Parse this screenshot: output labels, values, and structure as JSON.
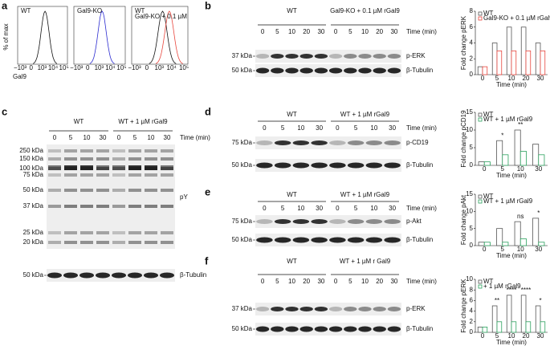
{
  "panel_a": {
    "label": "a",
    "ylabel": "% of max",
    "xlabel": "Gal9",
    "xticks": [
      "−10³",
      "0",
      "10³",
      "10⁴",
      "10⁵"
    ],
    "plots": [
      {
        "legend": [
          "WT"
        ],
        "colors": [
          "#111111"
        ]
      },
      {
        "legend": [
          "Gal9-KO"
        ],
        "colors": [
          "#2b2bd0"
        ]
      },
      {
        "legend": [
          "WT",
          "Gal9-KO + 0.1 µM"
        ],
        "colors": [
          "#111111",
          "#e8453c"
        ]
      }
    ]
  },
  "blots": [
    {
      "label": "b",
      "groups": [
        "WT",
        "Gal9-KO + 0.1 µM rGal9"
      ],
      "times": [
        0,
        5,
        10,
        20,
        30,
        0,
        5,
        10,
        20,
        30
      ],
      "time_label": "Time (min)",
      "rows": [
        {
          "marker": "37 kDa",
          "name": "p-ERK"
        },
        {
          "marker": "50 kDa",
          "name": "β-Tubulin"
        }
      ]
    },
    {
      "label": "c",
      "groups": [
        "WT",
        "WT + 1 µM rGal9"
      ],
      "times": [
        0,
        5,
        10,
        30,
        0,
        5,
        10,
        30
      ],
      "time_label": "Time (min)",
      "markers": [
        "250 kDa",
        "150 kDa",
        "100 kDa",
        "75 kDa",
        "50 kDa",
        "37 kDa",
        "25 kDa",
        "20 kDa"
      ],
      "rows": [
        {
          "name": "pY"
        },
        {
          "marker": "50 kDa",
          "name": "β-Tubulin"
        }
      ]
    },
    {
      "label": "d",
      "groups": [
        "WT",
        "WT + 1 µM rGal9"
      ],
      "times": [
        0,
        5,
        10,
        30,
        0,
        5,
        10,
        30
      ],
      "time_label": "Time (min)",
      "rows": [
        {
          "marker": "75 kDa",
          "name": "p-CD19"
        },
        {
          "marker": "50 kDa",
          "name": "β-Tubulin"
        }
      ]
    },
    {
      "label": "e",
      "groups": [
        "WT",
        "WT + 1 µM rGal9"
      ],
      "times": [
        0,
        5,
        10,
        30,
        0,
        5,
        10,
        30
      ],
      "time_label": "Time (min)",
      "rows": [
        {
          "marker": "75 kDa",
          "name": "p-Akt"
        },
        {
          "marker": "50 kDa",
          "name": "β-Tubulin"
        }
      ]
    },
    {
      "label": "f",
      "groups": [
        "WT",
        "WT + 1 µM r Gal9"
      ],
      "times": [
        0,
        5,
        10,
        20,
        30,
        0,
        5,
        10,
        20,
        30
      ],
      "time_label": "Time (min)",
      "rows": [
        {
          "marker": "37 kDa",
          "name": "p-ERK"
        },
        {
          "marker": "50 kDa",
          "name": "β-Tubulin"
        }
      ]
    }
  ],
  "chart_data": [
    {
      "type": "bar",
      "ylabel": "Fold change pERK",
      "xlabel": "Time (min)",
      "categories": [
        0,
        5,
        10,
        20,
        30
      ],
      "series": [
        {
          "name": "WT",
          "color": "#555555",
          "values": [
            1,
            4,
            6,
            6,
            4
          ]
        },
        {
          "name": "Gal9-KO + 0.1 µM rGal9",
          "color": "#e8453c",
          "values": [
            1,
            3,
            3,
            3,
            3
          ]
        }
      ],
      "ylim": [
        0,
        8
      ],
      "yticks": [
        0,
        2,
        4,
        6,
        8
      ]
    },
    {
      "type": "bar",
      "ylabel": "Fold change pCD19",
      "xlabel": "Time (min)",
      "categories": [
        0,
        5,
        10,
        30
      ],
      "series": [
        {
          "name": "WT",
          "color": "#555555",
          "values": [
            1,
            7,
            10,
            6
          ]
        },
        {
          "name": "WT + 1 µM rGal9",
          "color": "#2ca25f",
          "values": [
            1,
            3,
            4,
            3
          ]
        }
      ],
      "annotations": [
        null,
        "*",
        "**",
        null
      ],
      "ylim": [
        0,
        15
      ],
      "yticks": [
        0,
        5,
        10,
        15
      ]
    },
    {
      "type": "bar",
      "ylabel": "Fold change pAkt",
      "xlabel": "Time (min)",
      "categories": [
        0,
        5,
        10,
        30
      ],
      "series": [
        {
          "name": "WT",
          "color": "#555555",
          "values": [
            1,
            5,
            7,
            8
          ]
        },
        {
          "name": "WT + 1 µM rGal9",
          "color": "#2ca25f",
          "values": [
            1,
            1,
            2,
            1
          ]
        }
      ],
      "annotations": [
        null,
        null,
        "ns",
        "*"
      ],
      "ylim": [
        0,
        15
      ],
      "yticks": [
        0,
        5,
        10,
        15
      ]
    },
    {
      "type": "bar",
      "ylabel": "Fold change pERK",
      "xlabel": "Time (min)",
      "categories": [
        0,
        5,
        10,
        20,
        30
      ],
      "series": [
        {
          "name": "WT",
          "color": "#555555",
          "values": [
            1,
            5,
            7,
            7,
            5
          ]
        },
        {
          "name": "+ 1 µM rGal9",
          "color": "#2ca25f",
          "values": [
            1,
            2,
            2,
            2,
            2
          ]
        }
      ],
      "annotations": [
        null,
        "**",
        "****",
        "****",
        "*"
      ],
      "ylim": [
        0,
        10
      ],
      "yticks": [
        0,
        2,
        4,
        6,
        8,
        10
      ]
    }
  ]
}
